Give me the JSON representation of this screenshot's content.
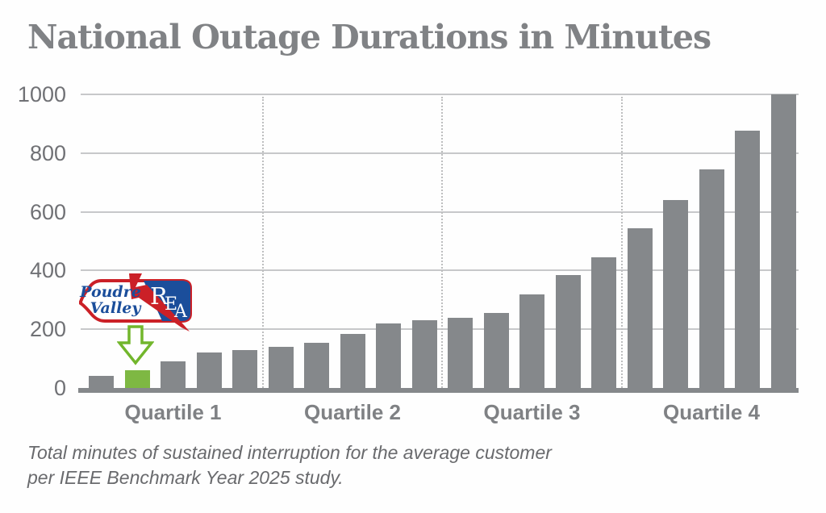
{
  "title": "National Outage Durations in Minutes",
  "caption": {
    "line1": "Total minutes of sustained interruption for the average customer",
    "line2": "per IEEE Benchmark Year 2025 study."
  },
  "logo": {
    "line1": "Poudre",
    "line2": "Valley",
    "rea": [
      "R",
      "E",
      "A"
    ],
    "red": "#cb2027",
    "blue": "#1b4e9b"
  },
  "arrow_color": "#72b62c",
  "chart_data": {
    "type": "bar",
    "title": "National Outage Durations in Minutes",
    "xlabel": "",
    "ylabel": "",
    "ylim": [
      0,
      1000
    ],
    "yticks": [
      0,
      200,
      400,
      600,
      800,
      1000
    ],
    "grid": "horizontal solid lines every 200; dotted vertical dividers between quartile groups",
    "legend": "none",
    "groups": [
      "Quartile 1",
      "Quartile 2",
      "Quartile 3",
      "Quartile 4"
    ],
    "bars_per_group": 5,
    "values": [
      40,
      60,
      90,
      120,
      130,
      140,
      155,
      185,
      220,
      230,
      240,
      255,
      320,
      385,
      445,
      545,
      640,
      745,
      875,
      1000
    ],
    "highlight_index": 1,
    "highlight_label": "Poudre Valley REA",
    "colors": {
      "bar": "#85888b",
      "highlight_bar": "#7eb843",
      "gridline": "#c7c8ca",
      "axis_text": "#707175",
      "group_label": "#7f8184"
    }
  }
}
